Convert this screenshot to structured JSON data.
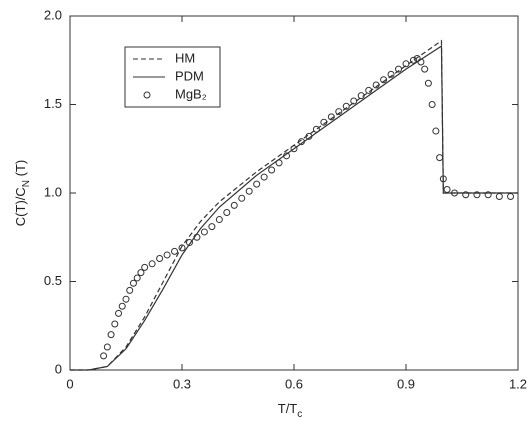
{
  "chart_data": {
    "type": "scatter",
    "xlabel": [
      "T/T",
      "c"
    ],
    "ylabel": [
      "C(T)/C",
      "N",
      " (T)"
    ],
    "xlim": [
      0,
      1.2
    ],
    "ylim": [
      0,
      2.0
    ],
    "xticks": [
      0,
      0.3,
      0.6,
      0.9,
      1.2
    ],
    "yticks": [
      0,
      0.5,
      {
        "value": 1.0,
        "label": "1.0"
      },
      1.5,
      {
        "value": 2.0,
        "label": "2.0"
      }
    ],
    "legend": "upper left",
    "series": [
      {
        "name": "HM",
        "color": "#333333",
        "style": "dashed",
        "x": [
          0,
          0.05,
          0.1,
          0.15,
          0.2,
          0.25,
          0.3,
          0.35,
          0.4,
          0.5,
          0.6,
          0.7,
          0.8,
          0.9,
          0.995,
          1.0,
          1.1,
          1.2
        ],
        "values": [
          0,
          0,
          0.02,
          0.13,
          0.3,
          0.5,
          0.7,
          0.84,
          0.95,
          1.12,
          1.27,
          1.42,
          1.57,
          1.72,
          1.86,
          1.0,
          1.0,
          1.0
        ]
      },
      {
        "name": "PDM",
        "color": "#333333",
        "style": "solid",
        "x": [
          0,
          0.05,
          0.1,
          0.15,
          0.2,
          0.25,
          0.3,
          0.35,
          0.4,
          0.5,
          0.6,
          0.7,
          0.8,
          0.9,
          0.995,
          1.0,
          1.1,
          1.2
        ],
        "values": [
          0,
          0,
          0.02,
          0.12,
          0.28,
          0.46,
          0.65,
          0.8,
          0.92,
          1.1,
          1.25,
          1.4,
          1.55,
          1.7,
          1.83,
          1.0,
          1.0,
          1.0
        ]
      },
      {
        "name": "MgB₂",
        "color": "#333333",
        "style": "markers",
        "x": [
          0.09,
          0.1,
          0.11,
          0.12,
          0.13,
          0.14,
          0.15,
          0.16,
          0.17,
          0.18,
          0.19,
          0.2,
          0.22,
          0.24,
          0.26,
          0.28,
          0.3,
          0.32,
          0.34,
          0.36,
          0.38,
          0.4,
          0.42,
          0.44,
          0.46,
          0.48,
          0.5,
          0.52,
          0.54,
          0.56,
          0.58,
          0.6,
          0.62,
          0.64,
          0.66,
          0.68,
          0.7,
          0.72,
          0.74,
          0.76,
          0.78,
          0.8,
          0.82,
          0.84,
          0.86,
          0.88,
          0.9,
          0.92,
          0.93,
          0.94,
          0.95,
          0.96,
          0.97,
          0.98,
          0.99,
          1.0,
          1.01,
          1.03,
          1.06,
          1.09,
          1.12,
          1.15,
          1.18
        ],
        "values": [
          0.08,
          0.13,
          0.2,
          0.26,
          0.32,
          0.36,
          0.4,
          0.45,
          0.49,
          0.52,
          0.55,
          0.58,
          0.6,
          0.63,
          0.65,
          0.67,
          0.69,
          0.72,
          0.75,
          0.78,
          0.81,
          0.85,
          0.89,
          0.93,
          0.97,
          1.01,
          1.05,
          1.09,
          1.13,
          1.17,
          1.21,
          1.25,
          1.29,
          1.32,
          1.36,
          1.4,
          1.43,
          1.46,
          1.49,
          1.52,
          1.55,
          1.58,
          1.61,
          1.64,
          1.67,
          1.7,
          1.73,
          1.75,
          1.76,
          1.74,
          1.7,
          1.62,
          1.5,
          1.35,
          1.2,
          1.08,
          1.02,
          1.0,
          0.99,
          0.99,
          0.99,
          0.98,
          0.98
        ]
      }
    ]
  }
}
